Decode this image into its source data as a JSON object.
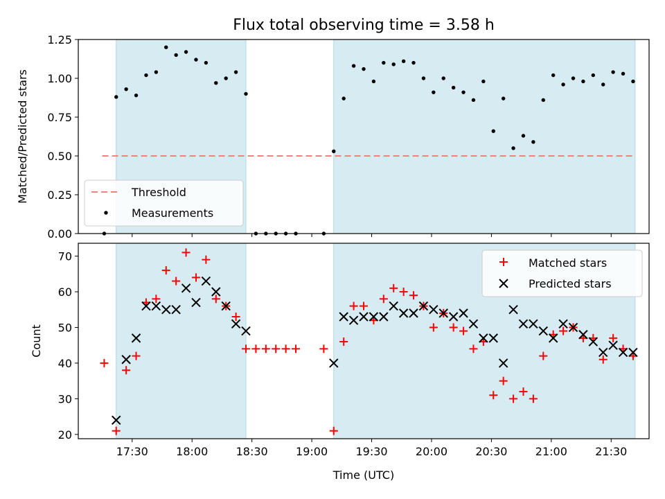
{
  "figure": {
    "title": "Flux total observing time = 3.58 h"
  },
  "chart_data": [
    {
      "type": "scatter",
      "panel": "top",
      "ylabel": "Matched/Predicted stars",
      "xlabel": "",
      "ylim": [
        0,
        1.25
      ],
      "yticks": [
        "0.00",
        "0.25",
        "0.50",
        "0.75",
        "1.00",
        "1.25"
      ],
      "grid": false,
      "legend": "lower-left",
      "shaded_intervals": [
        [
          "17:22",
          "18:27"
        ],
        [
          "19:11",
          "21:42"
        ]
      ],
      "threshold": {
        "name": "Threshold",
        "y": 0.5,
        "x": [
          "17:15",
          "21:42"
        ],
        "color": "#f28080",
        "style": "dashed"
      },
      "series": [
        {
          "name": "Measurements",
          "color": "#000000",
          "points": [
            [
              "17:16",
              0.0
            ],
            [
              "17:22",
              0.88
            ],
            [
              "17:27",
              0.93
            ],
            [
              "17:32",
              0.89
            ],
            [
              "17:37",
              1.02
            ],
            [
              "17:42",
              1.04
            ],
            [
              "17:47",
              1.2
            ],
            [
              "17:52",
              1.15
            ],
            [
              "17:57",
              1.17
            ],
            [
              "18:02",
              1.12
            ],
            [
              "18:07",
              1.1
            ],
            [
              "18:12",
              0.97
            ],
            [
              "18:17",
              1.0
            ],
            [
              "18:22",
              1.04
            ],
            [
              "18:27",
              0.9
            ],
            [
              "18:32",
              0.0
            ],
            [
              "18:37",
              0.0
            ],
            [
              "18:42",
              0.0
            ],
            [
              "18:47",
              0.0
            ],
            [
              "18:52",
              0.0
            ],
            [
              "19:06",
              0.0
            ],
            [
              "19:11",
              0.53
            ],
            [
              "19:16",
              0.87
            ],
            [
              "19:21",
              1.08
            ],
            [
              "19:26",
              1.06
            ],
            [
              "19:31",
              0.98
            ],
            [
              "19:36",
              1.1
            ],
            [
              "19:41",
              1.09
            ],
            [
              "19:46",
              1.11
            ],
            [
              "19:51",
              1.1
            ],
            [
              "19:56",
              1.0
            ],
            [
              "20:01",
              0.91
            ],
            [
              "20:06",
              1.0
            ],
            [
              "20:11",
              0.94
            ],
            [
              "20:16",
              0.91
            ],
            [
              "20:21",
              0.86
            ],
            [
              "20:26",
              0.98
            ],
            [
              "20:31",
              0.66
            ],
            [
              "20:36",
              0.87
            ],
            [
              "20:41",
              0.55
            ],
            [
              "20:46",
              0.63
            ],
            [
              "20:51",
              0.59
            ],
            [
              "20:56",
              0.86
            ],
            [
              "21:01",
              1.02
            ],
            [
              "21:06",
              0.96
            ],
            [
              "21:11",
              1.0
            ],
            [
              "21:16",
              0.98
            ],
            [
              "21:21",
              1.02
            ],
            [
              "21:26",
              0.96
            ],
            [
              "21:31",
              1.04
            ],
            [
              "21:36",
              1.03
            ],
            [
              "21:41",
              0.98
            ]
          ]
        }
      ]
    },
    {
      "type": "scatter",
      "panel": "bottom",
      "ylabel": "Count",
      "xlabel": "Time (UTC)",
      "ylim": [
        18.8,
        73.6
      ],
      "yticks": [
        "20",
        "30",
        "40",
        "50",
        "60",
        "70"
      ],
      "xticks": [
        "17:30",
        "18:00",
        "18:30",
        "19:00",
        "19:30",
        "20:00",
        "20:30",
        "21:00",
        "21:30"
      ],
      "xlim": [
        "17:03",
        "21:49"
      ],
      "grid": false,
      "legend": "upper-right",
      "shaded_intervals": [
        [
          "17:22",
          "18:27"
        ],
        [
          "19:11",
          "21:42"
        ]
      ],
      "series": [
        {
          "name": "Matched stars",
          "marker": "plus",
          "color": "#ff0000",
          "points": [
            [
              "17:16",
              40
            ],
            [
              "17:22",
              21
            ],
            [
              "17:27",
              38
            ],
            [
              "17:32",
              42
            ],
            [
              "17:37",
              57
            ],
            [
              "17:42",
              58
            ],
            [
              "17:47",
              66
            ],
            [
              "17:52",
              63
            ],
            [
              "17:57",
              71
            ],
            [
              "18:02",
              64
            ],
            [
              "18:07",
              69
            ],
            [
              "18:12",
              58
            ],
            [
              "18:17",
              56
            ],
            [
              "18:22",
              53
            ],
            [
              "18:27",
              44
            ],
            [
              "18:32",
              44
            ],
            [
              "18:37",
              44
            ],
            [
              "18:42",
              44
            ],
            [
              "18:47",
              44
            ],
            [
              "18:52",
              44
            ],
            [
              "19:06",
              44
            ],
            [
              "19:11",
              21
            ],
            [
              "19:16",
              46
            ],
            [
              "19:21",
              56
            ],
            [
              "19:26",
              56
            ],
            [
              "19:31",
              52
            ],
            [
              "19:36",
              58
            ],
            [
              "19:41",
              61
            ],
            [
              "19:46",
              60
            ],
            [
              "19:51",
              59
            ],
            [
              "19:56",
              56
            ],
            [
              "20:01",
              50
            ],
            [
              "20:06",
              54
            ],
            [
              "20:11",
              50
            ],
            [
              "20:16",
              49
            ],
            [
              "20:21",
              44
            ],
            [
              "20:26",
              46
            ],
            [
              "20:31",
              31
            ],
            [
              "20:36",
              35
            ],
            [
              "20:41",
              30
            ],
            [
              "20:46",
              32
            ],
            [
              "20:51",
              30
            ],
            [
              "20:56",
              42
            ],
            [
              "21:01",
              48
            ],
            [
              "21:06",
              49
            ],
            [
              "21:11",
              50
            ],
            [
              "21:16",
              47
            ],
            [
              "21:21",
              47
            ],
            [
              "21:26",
              41
            ],
            [
              "21:31",
              47
            ],
            [
              "21:36",
              44
            ],
            [
              "21:41",
              42
            ]
          ]
        },
        {
          "name": "Predicted stars",
          "marker": "x",
          "color": "#000000",
          "points": [
            [
              "17:22",
              24
            ],
            [
              "17:27",
              41
            ],
            [
              "17:32",
              47
            ],
            [
              "17:37",
              56
            ],
            [
              "17:42",
              56
            ],
            [
              "17:47",
              55
            ],
            [
              "17:52",
              55
            ],
            [
              "17:57",
              61
            ],
            [
              "18:02",
              57
            ],
            [
              "18:07",
              63
            ],
            [
              "18:12",
              60
            ],
            [
              "18:17",
              56
            ],
            [
              "18:22",
              51
            ],
            [
              "18:27",
              49
            ],
            [
              "19:11",
              40
            ],
            [
              "19:16",
              53
            ],
            [
              "19:21",
              52
            ],
            [
              "19:26",
              53
            ],
            [
              "19:31",
              53
            ],
            [
              "19:36",
              53
            ],
            [
              "19:41",
              56
            ],
            [
              "19:46",
              54
            ],
            [
              "19:51",
              54
            ],
            [
              "19:56",
              56
            ],
            [
              "20:01",
              55
            ],
            [
              "20:06",
              54
            ],
            [
              "20:11",
              53
            ],
            [
              "20:16",
              54
            ],
            [
              "20:21",
              51
            ],
            [
              "20:26",
              47
            ],
            [
              "20:31",
              47
            ],
            [
              "20:36",
              40
            ],
            [
              "20:41",
              55
            ],
            [
              "20:46",
              51
            ],
            [
              "20:51",
              51
            ],
            [
              "20:56",
              49
            ],
            [
              "21:01",
              47
            ],
            [
              "21:06",
              51
            ],
            [
              "21:11",
              50
            ],
            [
              "21:16",
              48
            ],
            [
              "21:21",
              46
            ],
            [
              "21:26",
              43
            ],
            [
              "21:31",
              45
            ],
            [
              "21:36",
              43
            ],
            [
              "21:41",
              43
            ]
          ]
        }
      ]
    }
  ]
}
